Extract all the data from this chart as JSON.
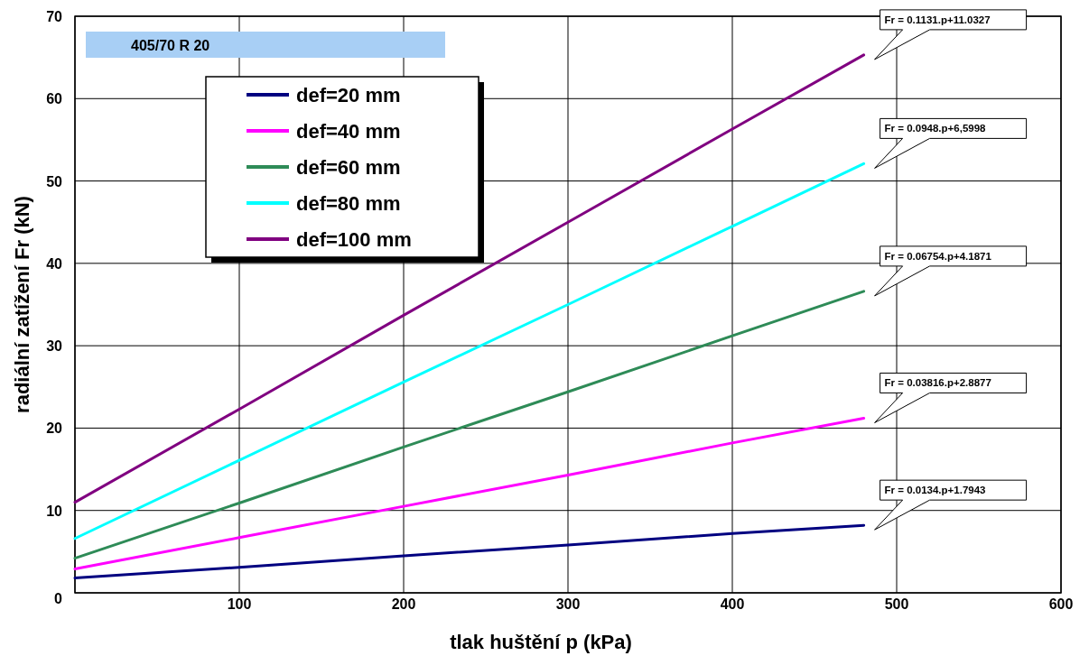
{
  "chart_data": {
    "type": "line",
    "title": "405/70 R 20",
    "xlabel": "tlak huštění p (kPa)",
    "ylabel": "radiální zatížení Fr (kN)",
    "x": [
      0,
      100,
      200,
      300,
      400,
      480
    ],
    "series": [
      {
        "name": "def=20 mm",
        "color": "#000080",
        "values": [
          1.8,
          3.1,
          4.5,
          5.8,
          7.2,
          8.2
        ]
      },
      {
        "name": "def=40 mm",
        "color": "#ff00ff",
        "values": [
          2.9,
          6.7,
          10.5,
          14.3,
          18.2,
          21.2
        ]
      },
      {
        "name": "def=60 mm",
        "color": "#2e8b57",
        "values": [
          4.2,
          10.9,
          17.7,
          24.4,
          31.2,
          36.6
        ]
      },
      {
        "name": "def=80 mm",
        "color": "#00ffff",
        "values": [
          6.6,
          16.1,
          25.6,
          35.0,
          44.5,
          52.1
        ]
      },
      {
        "name": "def=100 mm",
        "color": "#800080",
        "values": [
          11.0,
          22.3,
          33.7,
          45.0,
          56.3,
          65.3
        ]
      }
    ],
    "annotations": [
      "Fr = 0.1131.p+11.0327",
      "Fr = 0.0948.p+6,5998",
      "Fr = 0.06754.p+4.1871",
      "Fr = 0.03816.p+2.8877",
      "Fr = 0.0134.p+1.7943"
    ],
    "xlim": [
      0,
      600
    ],
    "xticks": [
      {
        "value": 0,
        "label": null
      },
      100,
      200,
      300,
      400,
      500,
      600
    ],
    "ylim": [
      0,
      70
    ],
    "yticks": [
      0,
      10,
      20,
      30,
      40,
      50,
      60,
      70
    ],
    "grid": true,
    "legend": "top left",
    "marker": "none",
    "line_style": "solid"
  }
}
